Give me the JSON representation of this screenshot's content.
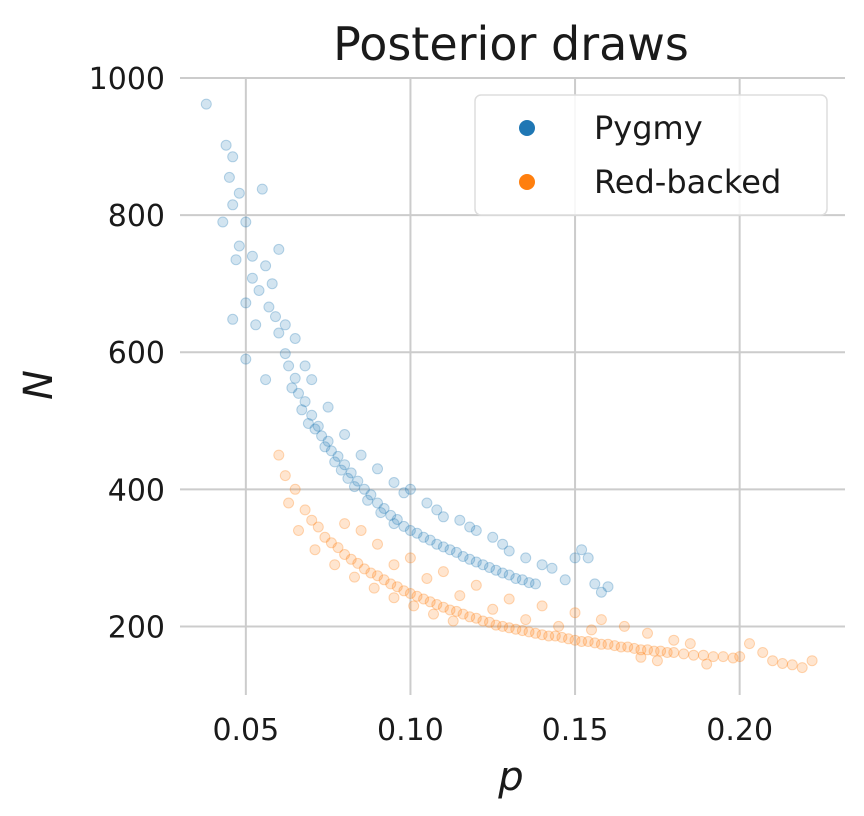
{
  "chart_data": {
    "type": "scatter",
    "title": "Posterior draws",
    "xlabel": "p",
    "ylabel": "N",
    "xlim": [
      0.03,
      0.232
    ],
    "ylim": [
      100,
      1000
    ],
    "xticks": [
      0.05,
      0.1,
      0.15,
      0.2
    ],
    "xtick_labels": [
      "0.05",
      "0.10",
      "0.15",
      "0.20"
    ],
    "yticks": [
      200,
      400,
      600,
      800,
      1000
    ],
    "ytick_labels": [
      "200",
      "400",
      "600",
      "800",
      "1000"
    ],
    "grid": true,
    "legend_position": "top-right",
    "marker_opacity": 0.2,
    "series": [
      {
        "name": "Pygmy",
        "color": "#1f77b4",
        "points": [
          [
            0.038,
            962
          ],
          [
            0.044,
            902
          ],
          [
            0.046,
            885
          ],
          [
            0.045,
            855
          ],
          [
            0.048,
            832
          ],
          [
            0.046,
            815
          ],
          [
            0.05,
            790
          ],
          [
            0.043,
            790
          ],
          [
            0.048,
            755
          ],
          [
            0.052,
            740
          ],
          [
            0.047,
            735
          ],
          [
            0.055,
            838
          ],
          [
            0.056,
            726
          ],
          [
            0.052,
            708
          ],
          [
            0.054,
            690
          ],
          [
            0.05,
            672
          ],
          [
            0.057,
            666
          ],
          [
            0.059,
            652
          ],
          [
            0.053,
            640
          ],
          [
            0.06,
            628
          ],
          [
            0.046,
            648
          ],
          [
            0.05,
            590
          ],
          [
            0.056,
            560
          ],
          [
            0.062,
            598
          ],
          [
            0.063,
            580
          ],
          [
            0.065,
            562
          ],
          [
            0.064,
            548
          ],
          [
            0.066,
            540
          ],
          [
            0.068,
            528
          ],
          [
            0.067,
            516
          ],
          [
            0.07,
            508
          ],
          [
            0.069,
            496
          ],
          [
            0.071,
            488
          ],
          [
            0.072,
            492
          ],
          [
            0.073,
            478
          ],
          [
            0.075,
            470
          ],
          [
            0.074,
            462
          ],
          [
            0.076,
            456
          ],
          [
            0.078,
            448
          ],
          [
            0.077,
            440
          ],
          [
            0.08,
            436
          ],
          [
            0.079,
            428
          ],
          [
            0.082,
            424
          ],
          [
            0.081,
            416
          ],
          [
            0.084,
            412
          ],
          [
            0.083,
            404
          ],
          [
            0.086,
            400
          ],
          [
            0.088,
            392
          ],
          [
            0.087,
            384
          ],
          [
            0.09,
            380
          ],
          [
            0.092,
            372
          ],
          [
            0.091,
            366
          ],
          [
            0.094,
            362
          ],
          [
            0.096,
            356
          ],
          [
            0.095,
            350
          ],
          [
            0.098,
            346
          ],
          [
            0.1,
            340
          ],
          [
            0.102,
            336
          ],
          [
            0.104,
            330
          ],
          [
            0.106,
            326
          ],
          [
            0.108,
            320
          ],
          [
            0.11,
            316
          ],
          [
            0.112,
            312
          ],
          [
            0.114,
            308
          ],
          [
            0.116,
            302
          ],
          [
            0.118,
            298
          ],
          [
            0.12,
            294
          ],
          [
            0.122,
            290
          ],
          [
            0.124,
            286
          ],
          [
            0.126,
            282
          ],
          [
            0.128,
            278
          ],
          [
            0.13,
            275
          ],
          [
            0.132,
            270
          ],
          [
            0.134,
            268
          ],
          [
            0.136,
            264
          ],
          [
            0.138,
            262
          ],
          [
            0.14,
            290
          ],
          [
            0.143,
            285
          ],
          [
            0.147,
            268
          ],
          [
            0.15,
            300
          ],
          [
            0.152,
            312
          ],
          [
            0.154,
            300
          ],
          [
            0.156,
            262
          ],
          [
            0.158,
            250
          ],
          [
            0.16,
            258
          ],
          [
            0.12,
            340
          ],
          [
            0.125,
            330
          ],
          [
            0.115,
            355
          ],
          [
            0.105,
            380
          ],
          [
            0.095,
            410
          ],
          [
            0.085,
            450
          ],
          [
            0.075,
            520
          ],
          [
            0.068,
            580
          ],
          [
            0.062,
            640
          ],
          [
            0.058,
            700
          ],
          [
            0.06,
            750
          ],
          [
            0.065,
            620
          ],
          [
            0.07,
            560
          ],
          [
            0.08,
            480
          ],
          [
            0.09,
            430
          ],
          [
            0.1,
            400
          ],
          [
            0.11,
            360
          ],
          [
            0.13,
            310
          ],
          [
            0.135,
            300
          ],
          [
            0.128,
            320
          ],
          [
            0.118,
            345
          ],
          [
            0.108,
            370
          ],
          [
            0.098,
            395
          ]
        ]
      },
      {
        "name": "Red-backed",
        "color": "#ff7f0e",
        "points": [
          [
            0.06,
            450
          ],
          [
            0.062,
            420
          ],
          [
            0.065,
            400
          ],
          [
            0.063,
            380
          ],
          [
            0.068,
            370
          ],
          [
            0.07,
            355
          ],
          [
            0.066,
            340
          ],
          [
            0.072,
            345
          ],
          [
            0.074,
            330
          ],
          [
            0.076,
            322
          ],
          [
            0.071,
            312
          ],
          [
            0.078,
            315
          ],
          [
            0.08,
            305
          ],
          [
            0.082,
            298
          ],
          [
            0.077,
            290
          ],
          [
            0.084,
            292
          ],
          [
            0.086,
            284
          ],
          [
            0.088,
            278
          ],
          [
            0.083,
            272
          ],
          [
            0.09,
            274
          ],
          [
            0.092,
            268
          ],
          [
            0.094,
            262
          ],
          [
            0.089,
            256
          ],
          [
            0.096,
            258
          ],
          [
            0.098,
            252
          ],
          [
            0.1,
            248
          ],
          [
            0.095,
            242
          ],
          [
            0.102,
            244
          ],
          [
            0.104,
            240
          ],
          [
            0.106,
            236
          ],
          [
            0.101,
            230
          ],
          [
            0.108,
            232
          ],
          [
            0.11,
            228
          ],
          [
            0.112,
            224
          ],
          [
            0.107,
            218
          ],
          [
            0.114,
            222
          ],
          [
            0.116,
            218
          ],
          [
            0.118,
            214
          ],
          [
            0.113,
            208
          ],
          [
            0.12,
            212
          ],
          [
            0.122,
            208
          ],
          [
            0.124,
            206
          ],
          [
            0.126,
            202
          ],
          [
            0.128,
            200
          ],
          [
            0.13,
            198
          ],
          [
            0.132,
            196
          ],
          [
            0.134,
            194
          ],
          [
            0.136,
            192
          ],
          [
            0.138,
            190
          ],
          [
            0.14,
            188
          ],
          [
            0.142,
            186
          ],
          [
            0.144,
            186
          ],
          [
            0.146,
            184
          ],
          [
            0.148,
            182
          ],
          [
            0.15,
            180
          ],
          [
            0.152,
            178
          ],
          [
            0.154,
            178
          ],
          [
            0.156,
            176
          ],
          [
            0.158,
            174
          ],
          [
            0.16,
            174
          ],
          [
            0.162,
            172
          ],
          [
            0.164,
            170
          ],
          [
            0.166,
            170
          ],
          [
            0.168,
            168
          ],
          [
            0.17,
            166
          ],
          [
            0.172,
            166
          ],
          [
            0.174,
            164
          ],
          [
            0.176,
            164
          ],
          [
            0.178,
            162
          ],
          [
            0.18,
            162
          ],
          [
            0.183,
            160
          ],
          [
            0.186,
            158
          ],
          [
            0.189,
            158
          ],
          [
            0.192,
            156
          ],
          [
            0.195,
            156
          ],
          [
            0.198,
            154
          ],
          [
            0.2,
            156
          ],
          [
            0.203,
            175
          ],
          [
            0.207,
            162
          ],
          [
            0.21,
            150
          ],
          [
            0.213,
            146
          ],
          [
            0.216,
            144
          ],
          [
            0.219,
            140
          ],
          [
            0.222,
            150
          ],
          [
            0.165,
            200
          ],
          [
            0.172,
            190
          ],
          [
            0.18,
            180
          ],
          [
            0.185,
            175
          ],
          [
            0.158,
            210
          ],
          [
            0.15,
            220
          ],
          [
            0.14,
            230
          ],
          [
            0.13,
            240
          ],
          [
            0.12,
            260
          ],
          [
            0.11,
            280
          ],
          [
            0.1,
            300
          ],
          [
            0.09,
            320
          ],
          [
            0.08,
            350
          ],
          [
            0.085,
            340
          ],
          [
            0.095,
            290
          ],
          [
            0.105,
            270
          ],
          [
            0.115,
            245
          ],
          [
            0.125,
            225
          ],
          [
            0.135,
            210
          ],
          [
            0.145,
            200
          ],
          [
            0.155,
            195
          ],
          [
            0.17,
            155
          ],
          [
            0.175,
            150
          ],
          [
            0.19,
            145
          ]
        ]
      }
    ]
  }
}
